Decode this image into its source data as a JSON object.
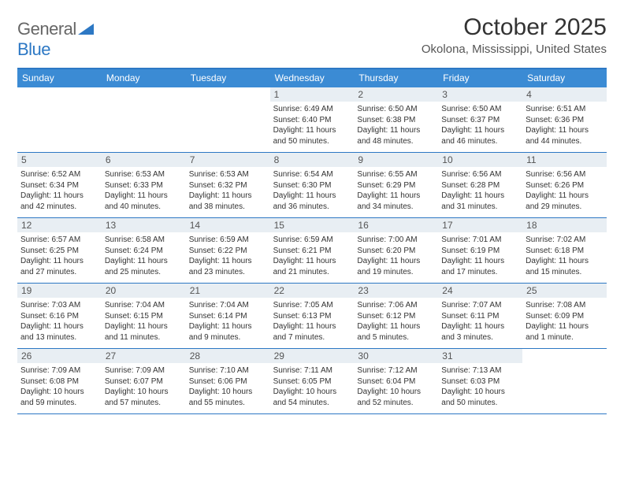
{
  "logo": {
    "text_gen": "General",
    "text_blue": "Blue"
  },
  "title": "October 2025",
  "location": "Okolona, Mississippi, United States",
  "colors": {
    "header_bg": "#3b8bd4",
    "header_text": "#ffffff",
    "border": "#2d78c4",
    "daynum_bg": "#e8eef3",
    "body_text": "#333333",
    "logo_blue": "#2d78c4",
    "background": "#ffffff"
  },
  "day_headers": [
    "Sunday",
    "Monday",
    "Tuesday",
    "Wednesday",
    "Thursday",
    "Friday",
    "Saturday"
  ],
  "weeks": [
    [
      {
        "n": "",
        "sr": "",
        "ss": "",
        "dl": ""
      },
      {
        "n": "",
        "sr": "",
        "ss": "",
        "dl": ""
      },
      {
        "n": "",
        "sr": "",
        "ss": "",
        "dl": ""
      },
      {
        "n": "1",
        "sr": "Sunrise: 6:49 AM",
        "ss": "Sunset: 6:40 PM",
        "dl": "Daylight: 11 hours and 50 minutes."
      },
      {
        "n": "2",
        "sr": "Sunrise: 6:50 AM",
        "ss": "Sunset: 6:38 PM",
        "dl": "Daylight: 11 hours and 48 minutes."
      },
      {
        "n": "3",
        "sr": "Sunrise: 6:50 AM",
        "ss": "Sunset: 6:37 PM",
        "dl": "Daylight: 11 hours and 46 minutes."
      },
      {
        "n": "4",
        "sr": "Sunrise: 6:51 AM",
        "ss": "Sunset: 6:36 PM",
        "dl": "Daylight: 11 hours and 44 minutes."
      }
    ],
    [
      {
        "n": "5",
        "sr": "Sunrise: 6:52 AM",
        "ss": "Sunset: 6:34 PM",
        "dl": "Daylight: 11 hours and 42 minutes."
      },
      {
        "n": "6",
        "sr": "Sunrise: 6:53 AM",
        "ss": "Sunset: 6:33 PM",
        "dl": "Daylight: 11 hours and 40 minutes."
      },
      {
        "n": "7",
        "sr": "Sunrise: 6:53 AM",
        "ss": "Sunset: 6:32 PM",
        "dl": "Daylight: 11 hours and 38 minutes."
      },
      {
        "n": "8",
        "sr": "Sunrise: 6:54 AM",
        "ss": "Sunset: 6:30 PM",
        "dl": "Daylight: 11 hours and 36 minutes."
      },
      {
        "n": "9",
        "sr": "Sunrise: 6:55 AM",
        "ss": "Sunset: 6:29 PM",
        "dl": "Daylight: 11 hours and 34 minutes."
      },
      {
        "n": "10",
        "sr": "Sunrise: 6:56 AM",
        "ss": "Sunset: 6:28 PM",
        "dl": "Daylight: 11 hours and 31 minutes."
      },
      {
        "n": "11",
        "sr": "Sunrise: 6:56 AM",
        "ss": "Sunset: 6:26 PM",
        "dl": "Daylight: 11 hours and 29 minutes."
      }
    ],
    [
      {
        "n": "12",
        "sr": "Sunrise: 6:57 AM",
        "ss": "Sunset: 6:25 PM",
        "dl": "Daylight: 11 hours and 27 minutes."
      },
      {
        "n": "13",
        "sr": "Sunrise: 6:58 AM",
        "ss": "Sunset: 6:24 PM",
        "dl": "Daylight: 11 hours and 25 minutes."
      },
      {
        "n": "14",
        "sr": "Sunrise: 6:59 AM",
        "ss": "Sunset: 6:22 PM",
        "dl": "Daylight: 11 hours and 23 minutes."
      },
      {
        "n": "15",
        "sr": "Sunrise: 6:59 AM",
        "ss": "Sunset: 6:21 PM",
        "dl": "Daylight: 11 hours and 21 minutes."
      },
      {
        "n": "16",
        "sr": "Sunrise: 7:00 AM",
        "ss": "Sunset: 6:20 PM",
        "dl": "Daylight: 11 hours and 19 minutes."
      },
      {
        "n": "17",
        "sr": "Sunrise: 7:01 AM",
        "ss": "Sunset: 6:19 PM",
        "dl": "Daylight: 11 hours and 17 minutes."
      },
      {
        "n": "18",
        "sr": "Sunrise: 7:02 AM",
        "ss": "Sunset: 6:18 PM",
        "dl": "Daylight: 11 hours and 15 minutes."
      }
    ],
    [
      {
        "n": "19",
        "sr": "Sunrise: 7:03 AM",
        "ss": "Sunset: 6:16 PM",
        "dl": "Daylight: 11 hours and 13 minutes."
      },
      {
        "n": "20",
        "sr": "Sunrise: 7:04 AM",
        "ss": "Sunset: 6:15 PM",
        "dl": "Daylight: 11 hours and 11 minutes."
      },
      {
        "n": "21",
        "sr": "Sunrise: 7:04 AM",
        "ss": "Sunset: 6:14 PM",
        "dl": "Daylight: 11 hours and 9 minutes."
      },
      {
        "n": "22",
        "sr": "Sunrise: 7:05 AM",
        "ss": "Sunset: 6:13 PM",
        "dl": "Daylight: 11 hours and 7 minutes."
      },
      {
        "n": "23",
        "sr": "Sunrise: 7:06 AM",
        "ss": "Sunset: 6:12 PM",
        "dl": "Daylight: 11 hours and 5 minutes."
      },
      {
        "n": "24",
        "sr": "Sunrise: 7:07 AM",
        "ss": "Sunset: 6:11 PM",
        "dl": "Daylight: 11 hours and 3 minutes."
      },
      {
        "n": "25",
        "sr": "Sunrise: 7:08 AM",
        "ss": "Sunset: 6:09 PM",
        "dl": "Daylight: 11 hours and 1 minute."
      }
    ],
    [
      {
        "n": "26",
        "sr": "Sunrise: 7:09 AM",
        "ss": "Sunset: 6:08 PM",
        "dl": "Daylight: 10 hours and 59 minutes."
      },
      {
        "n": "27",
        "sr": "Sunrise: 7:09 AM",
        "ss": "Sunset: 6:07 PM",
        "dl": "Daylight: 10 hours and 57 minutes."
      },
      {
        "n": "28",
        "sr": "Sunrise: 7:10 AM",
        "ss": "Sunset: 6:06 PM",
        "dl": "Daylight: 10 hours and 55 minutes."
      },
      {
        "n": "29",
        "sr": "Sunrise: 7:11 AM",
        "ss": "Sunset: 6:05 PM",
        "dl": "Daylight: 10 hours and 54 minutes."
      },
      {
        "n": "30",
        "sr": "Sunrise: 7:12 AM",
        "ss": "Sunset: 6:04 PM",
        "dl": "Daylight: 10 hours and 52 minutes."
      },
      {
        "n": "31",
        "sr": "Sunrise: 7:13 AM",
        "ss": "Sunset: 6:03 PM",
        "dl": "Daylight: 10 hours and 50 minutes."
      },
      {
        "n": "",
        "sr": "",
        "ss": "",
        "dl": ""
      }
    ]
  ]
}
